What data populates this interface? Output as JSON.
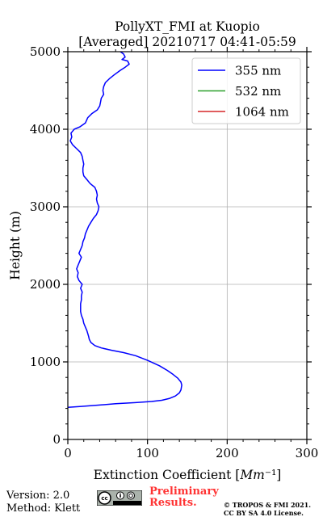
{
  "chart_data": {
    "type": "line",
    "title": "PollyXT_FMI at Kuopio",
    "subtitle": "[Averaged] 20210717 04:41-05:59",
    "xlabel": "Extinction Coefficient [Mm⁻¹]",
    "ylabel": "Height (m)",
    "xlim": [
      0,
      300
    ],
    "ylim": [
      0,
      5000
    ],
    "x_ticks": [
      "0",
      "100",
      "200",
      "300"
    ],
    "y_ticks": [
      "0",
      "1000",
      "2000",
      "3000",
      "4000",
      "5000"
    ],
    "x_tick_values": [
      0,
      100,
      200,
      300
    ],
    "y_tick_values": [
      0,
      1000,
      2000,
      3000,
      4000,
      5000
    ],
    "grid": true,
    "legend_position": "top-right",
    "series": [
      {
        "name": "355 nm",
        "color": "#0000ff",
        "points": [
          [
            0,
            415
          ],
          [
            15,
            425
          ],
          [
            35,
            440
          ],
          [
            60,
            460
          ],
          [
            85,
            475
          ],
          [
            105,
            490
          ],
          [
            118,
            505
          ],
          [
            128,
            530
          ],
          [
            135,
            560
          ],
          [
            140,
            600
          ],
          [
            142,
            640
          ],
          [
            143,
            700
          ],
          [
            142,
            740
          ],
          [
            138,
            790
          ],
          [
            132,
            840
          ],
          [
            125,
            890
          ],
          [
            115,
            950
          ],
          [
            100,
            1020
          ],
          [
            85,
            1080
          ],
          [
            70,
            1120
          ],
          [
            55,
            1150
          ],
          [
            42,
            1180
          ],
          [
            34,
            1210
          ],
          [
            29,
            1250
          ],
          [
            27,
            1290
          ],
          [
            26,
            1330
          ],
          [
            24,
            1400
          ],
          [
            22,
            1450
          ],
          [
            20,
            1500
          ],
          [
            19,
            1550
          ],
          [
            17,
            1600
          ],
          [
            16,
            1650
          ],
          [
            16,
            1700
          ],
          [
            16,
            1750
          ],
          [
            17,
            1800
          ],
          [
            17,
            1850
          ],
          [
            18,
            1900
          ],
          [
            16,
            1950
          ],
          [
            18,
            2000
          ],
          [
            14,
            2050
          ],
          [
            12,
            2100
          ],
          [
            13,
            2150
          ],
          [
            11,
            2200
          ],
          [
            13,
            2250
          ],
          [
            15,
            2300
          ],
          [
            17,
            2350
          ],
          [
            14,
            2400
          ],
          [
            16,
            2450
          ],
          [
            18,
            2500
          ],
          [
            19,
            2550
          ],
          [
            21,
            2600
          ],
          [
            22,
            2650
          ],
          [
            24,
            2700
          ],
          [
            26,
            2750
          ],
          [
            29,
            2800
          ],
          [
            32,
            2850
          ],
          [
            36,
            2900
          ],
          [
            38,
            2950
          ],
          [
            39,
            3000
          ],
          [
            37,
            3050
          ],
          [
            36,
            3100
          ],
          [
            37,
            3150
          ],
          [
            36,
            3200
          ],
          [
            34,
            3250
          ],
          [
            28,
            3300
          ],
          [
            24,
            3350
          ],
          [
            20,
            3400
          ],
          [
            19,
            3450
          ],
          [
            19,
            3500
          ],
          [
            20,
            3550
          ],
          [
            19,
            3600
          ],
          [
            18,
            3650
          ],
          [
            16,
            3700
          ],
          [
            11,
            3750
          ],
          [
            6,
            3800
          ],
          [
            3,
            3850
          ],
          [
            5,
            3900
          ],
          [
            4,
            3950
          ],
          [
            8,
            4000
          ],
          [
            15,
            4030
          ],
          [
            22,
            4080
          ],
          [
            25,
            4150
          ],
          [
            30,
            4200
          ],
          [
            37,
            4250
          ],
          [
            40,
            4300
          ],
          [
            41,
            4350
          ],
          [
            42,
            4400
          ],
          [
            45,
            4450
          ],
          [
            44,
            4500
          ],
          [
            45,
            4550
          ],
          [
            47,
            4600
          ],
          [
            52,
            4650
          ],
          [
            58,
            4700
          ],
          [
            66,
            4760
          ],
          [
            72,
            4800
          ],
          [
            77,
            4840
          ],
          [
            75,
            4880
          ],
          [
            68,
            4900
          ],
          [
            72,
            4930
          ],
          [
            70,
            4970
          ],
          [
            66,
            5000
          ]
        ]
      },
      {
        "name": "532 nm",
        "color": "#2ca02c",
        "points": []
      },
      {
        "name": "1064 nm",
        "color": "#d62728",
        "points": []
      }
    ]
  },
  "footer": {
    "version": "Version: 2.0",
    "method": "Method: Klett",
    "preliminary_line1": "Preliminary",
    "preliminary_line2": "Results.",
    "copyright_line1": "© TROPOS & FMI 2021.",
    "copyright_line2": "CC BY SA 4.0 License."
  }
}
